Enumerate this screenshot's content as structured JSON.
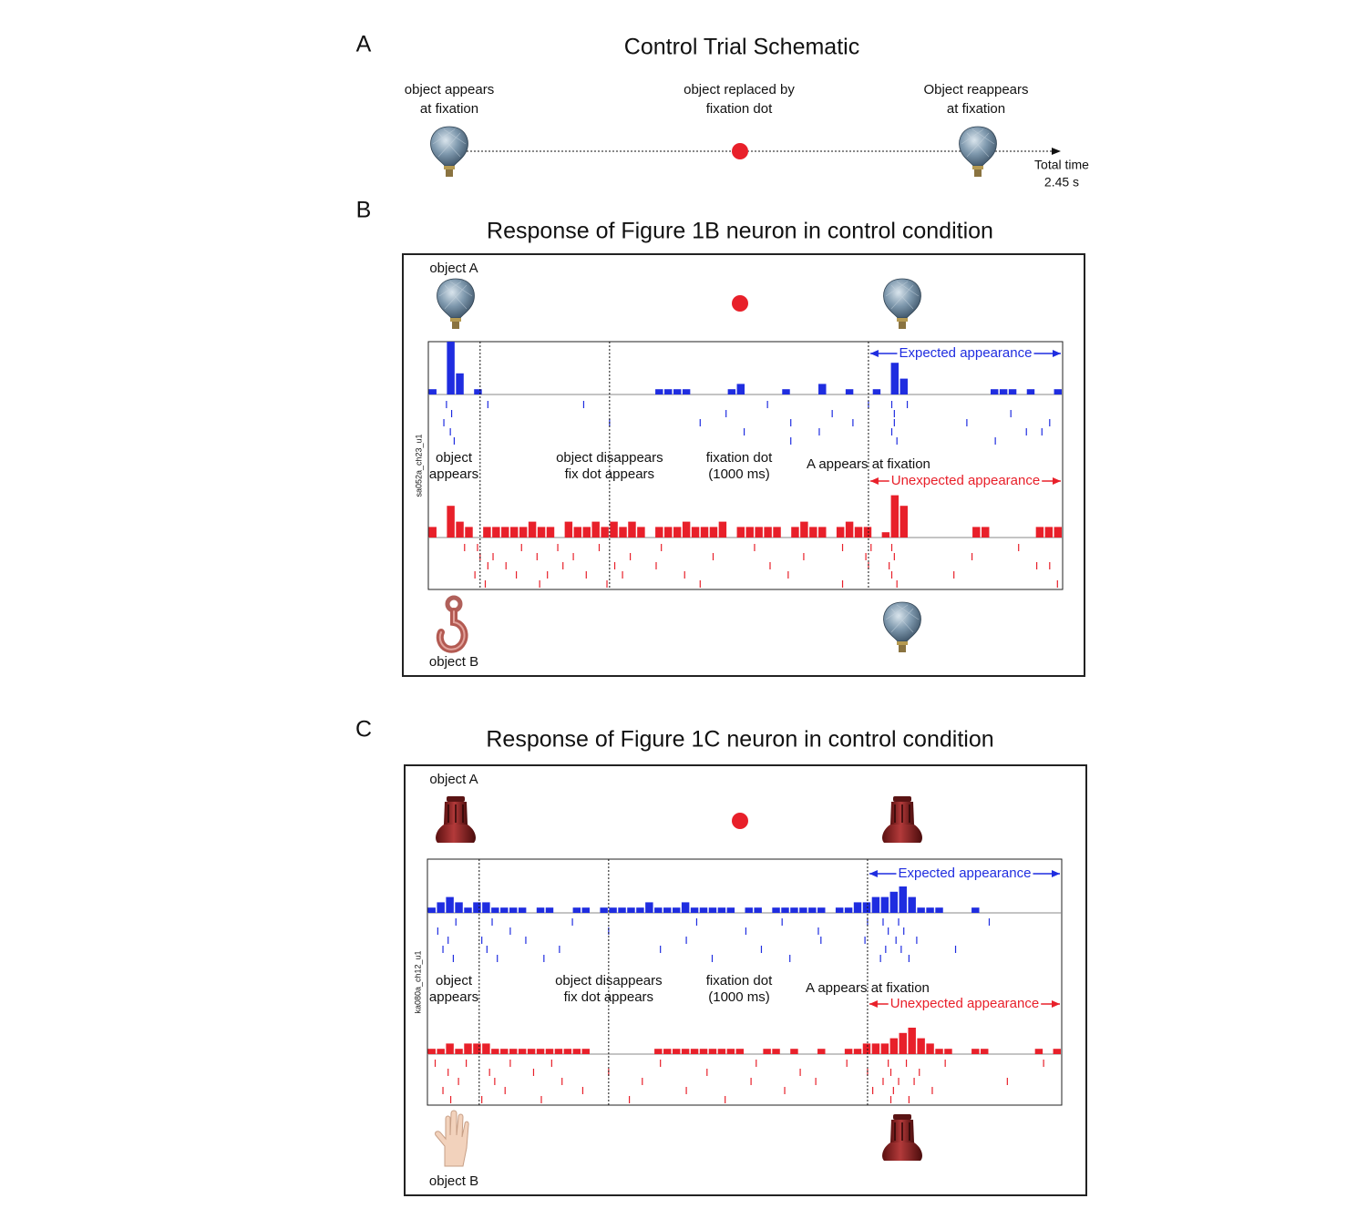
{
  "panel_a": {
    "letter": "A",
    "title": "Control Trial Schematic",
    "labels": [
      [
        "object appears",
        "at fixation"
      ],
      [
        "object replaced by",
        "fixation dot"
      ],
      [
        "Object reappears",
        "at fixation"
      ]
    ],
    "total_time": [
      "Total time",
      "2.45 s"
    ]
  },
  "panels": [
    {
      "letter": "B",
      "title": "Response of Figure 1B neuron in control condition",
      "object_a": "object A",
      "object_b": "object B",
      "neuron": "sa052a_ch23_u1",
      "event_labels": [
        [
          "object",
          "appears"
        ],
        [
          "object disappears",
          "fix dot appears"
        ],
        [
          "fixation dot",
          "(1000 ms)"
        ],
        [
          "A appears at fixation"
        ]
      ],
      "expected": "Expected appearance",
      "unexpected": "Unexpected appearance",
      "xlim": [
        0,
        2450
      ],
      "events": [
        200,
        700,
        1700
      ],
      "blue_hist": [
        1,
        0,
        10,
        4,
        0,
        1,
        0,
        0,
        0,
        0,
        0,
        0,
        0,
        0,
        0,
        0,
        0,
        0,
        0,
        0,
        0,
        0,
        0,
        0,
        0,
        1,
        1,
        1,
        1,
        0,
        0,
        0,
        0,
        1,
        2,
        0,
        0,
        0,
        0,
        1,
        0,
        0,
        0,
        2,
        0,
        0,
        1,
        0,
        0,
        1,
        0,
        6,
        3,
        0,
        0,
        0,
        0,
        0,
        0,
        0,
        0,
        0,
        1,
        1,
        1,
        0,
        1,
        0,
        0,
        1
      ],
      "red_hist": [
        2,
        0,
        6,
        3,
        2,
        0,
        2,
        2,
        2,
        2,
        2,
        3,
        2,
        2,
        0,
        3,
        2,
        2,
        3,
        2,
        3,
        2,
        3,
        2,
        0,
        2,
        2,
        2,
        3,
        2,
        2,
        2,
        3,
        0,
        2,
        2,
        2,
        2,
        2,
        0,
        2,
        3,
        2,
        2,
        0,
        2,
        3,
        2,
        2,
        0,
        1,
        8,
        6,
        0,
        0,
        0,
        0,
        0,
        0,
        0,
        2,
        2,
        0,
        0,
        0,
        0,
        0,
        2,
        2,
        2
      ],
      "blue_raster": [
        [
          70,
          230,
          600,
          1310,
          1700,
          1790,
          1850
        ],
        [
          90,
          1150,
          1560,
          1800,
          2250
        ],
        [
          60,
          700,
          1050,
          1400,
          1640,
          1800,
          2080,
          2400
        ],
        [
          85,
          1220,
          1510,
          1790,
          2310,
          2370
        ],
        [
          100,
          1400,
          1810,
          2190
        ]
      ],
      "red_raster": [
        [
          140,
          190,
          360,
          500,
          660,
          900,
          1260,
          1600,
          1710,
          1790,
          2280
        ],
        [
          200,
          250,
          420,
          560,
          780,
          1100,
          1450,
          1690,
          1800,
          2100
        ],
        [
          230,
          300,
          520,
          720,
          880,
          1320,
          1700,
          1780,
          2350,
          2400
        ],
        [
          180,
          340,
          460,
          610,
          750,
          990,
          1390,
          1790,
          2030
        ],
        [
          220,
          430,
          690,
          1050,
          1600,
          1810,
          2430
        ]
      ]
    },
    {
      "letter": "C",
      "title": "Response of Figure 1C neuron in control condition",
      "object_a": "object A",
      "object_b": "object B",
      "neuron": "ka080a_ch12_u1",
      "event_labels": [
        [
          "object",
          "appears"
        ],
        [
          "object disappears",
          "fix dot appears"
        ],
        [
          "fixation dot",
          "(1000 ms)"
        ],
        [
          "A appears at fixation"
        ]
      ],
      "expected": "Expected appearance",
      "unexpected": "Unexpected appearance",
      "xlim": [
        0,
        2450
      ],
      "events": [
        200,
        700,
        1700
      ],
      "blue_hist": [
        1,
        2,
        3,
        2,
        1,
        2,
        2,
        1,
        1,
        1,
        1,
        0,
        1,
        1,
        0,
        0,
        1,
        1,
        0,
        1,
        1,
        1,
        1,
        1,
        2,
        1,
        1,
        1,
        2,
        1,
        1,
        1,
        1,
        1,
        0,
        1,
        1,
        0,
        1,
        1,
        1,
        1,
        1,
        1,
        0,
        1,
        1,
        2,
        2,
        3,
        3,
        4,
        5,
        3,
        1,
        1,
        1,
        0,
        0,
        0,
        1,
        0,
        0,
        0,
        0,
        0,
        0,
        0,
        0,
        0
      ],
      "red_hist": [
        1,
        1,
        2,
        1,
        2,
        2,
        2,
        1,
        1,
        1,
        1,
        1,
        1,
        1,
        1,
        1,
        1,
        1,
        0,
        0,
        0,
        0,
        0,
        0,
        0,
        1,
        1,
        1,
        1,
        1,
        1,
        1,
        1,
        1,
        1,
        0,
        0,
        1,
        1,
        0,
        1,
        0,
        0,
        1,
        0,
        0,
        1,
        1,
        2,
        2,
        2,
        3,
        4,
        5,
        3,
        2,
        1,
        1,
        0,
        0,
        1,
        1,
        0,
        0,
        0,
        0,
        0,
        1,
        0,
        1
      ],
      "blue_raster": [
        [
          110,
          250,
          560,
          1040,
          1370,
          1700,
          1760,
          1820,
          2170
        ],
        [
          40,
          320,
          700,
          1230,
          1510,
          1780,
          1840
        ],
        [
          80,
          210,
          380,
          1000,
          1520,
          1690,
          1810,
          1890
        ],
        [
          60,
          230,
          510,
          900,
          1290,
          1770,
          1830,
          2040
        ],
        [
          100,
          270,
          450,
          1100,
          1400,
          1750,
          1860
        ]
      ],
      "red_raster": [
        [
          30,
          150,
          320,
          480,
          900,
          1270,
          1620,
          1780,
          1850,
          2000,
          2380
        ],
        [
          80,
          240,
          410,
          700,
          1080,
          1440,
          1700,
          1790,
          1900
        ],
        [
          120,
          260,
          520,
          830,
          1250,
          1500,
          1760,
          1820,
          1880,
          2240
        ],
        [
          60,
          300,
          600,
          1000,
          1380,
          1720,
          1800,
          1950
        ],
        [
          90,
          210,
          440,
          780,
          1150,
          1790,
          1860
        ]
      ]
    }
  ]
}
